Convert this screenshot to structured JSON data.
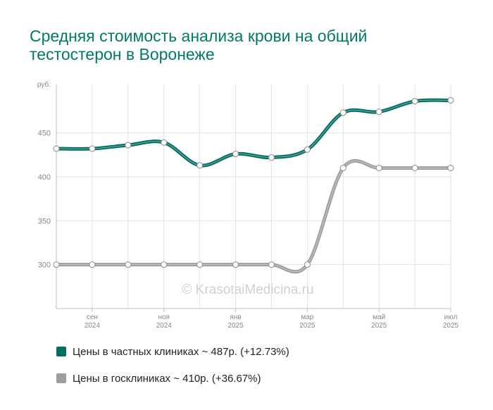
{
  "title_lines": [
    "Средняя стоимость анализа крови на общий",
    "тестостерон в Воронеже"
  ],
  "watermark": "© KrasotaiMedicina.ru",
  "colors": {
    "private": "#006f62",
    "public": "#9e9e9e"
  },
  "legend": [
    {
      "label": "Цены в частных клиниках ~ 487р. (+12.73%)",
      "color": "#006f62"
    },
    {
      "label": "Цены в госклиниках ~ 410р. (+36.67%)",
      "color": "#9e9e9e"
    }
  ],
  "chart_data": {
    "type": "line",
    "ylabel": "руб.",
    "ylim": [
      250,
      505
    ],
    "yticks": [
      300,
      350,
      400,
      450
    ],
    "xtick_labels": [
      [
        "сен",
        "2024"
      ],
      [
        "ноя",
        "2024"
      ],
      [
        "янв",
        "2025"
      ],
      [
        "мар",
        "2025"
      ],
      [
        "май",
        "2025"
      ],
      [
        "июл",
        "2025"
      ]
    ],
    "grid": true,
    "series": [
      {
        "name": "Цены в частных клиниках",
        "values": [
          432,
          432,
          436,
          439,
          413,
          426,
          422,
          431,
          473,
          474,
          486,
          487
        ]
      },
      {
        "name": "Цены в госклиниках",
        "values": [
          300,
          300,
          300,
          300,
          300,
          300,
          300,
          300,
          410,
          410,
          410,
          410
        ]
      }
    ]
  }
}
